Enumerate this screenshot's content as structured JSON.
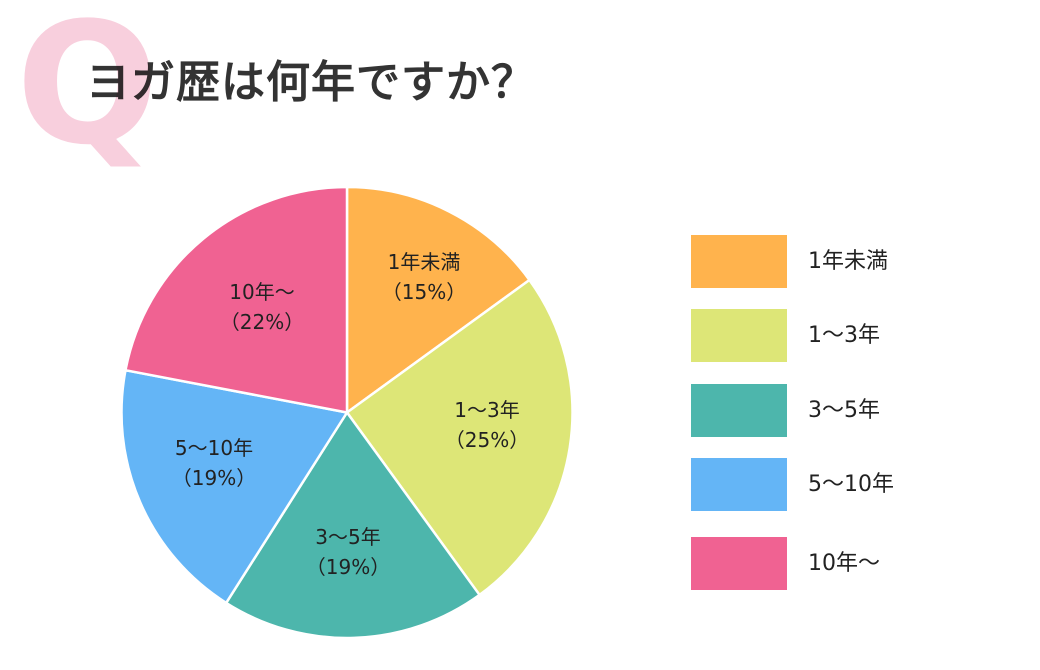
{
  "header": {
    "q_letter": "Q",
    "title": "ヨガ歴は何年ですか？"
  },
  "colors": {
    "q_letter": "#f8cfdd",
    "title": "#333333",
    "slice_border": "#ffffff"
  },
  "chart_data": {
    "type": "pie",
    "title": "ヨガ歴は何年ですか？",
    "categories": [
      "1年未満",
      "1〜3年",
      "3〜5年",
      "5〜10年",
      "10年〜"
    ],
    "values": [
      15,
      25,
      19,
      19,
      22
    ],
    "unit": "%",
    "colors": [
      "#ffb34d",
      "#dde677",
      "#4db6ac",
      "#64b5f6",
      "#f06292"
    ],
    "start_angle": "12 o'clock",
    "direction": "clockwise",
    "legend_position": "right"
  },
  "slices": [
    {
      "label": "1年未満",
      "pct_text": "（15%）"
    },
    {
      "label": "1〜3年",
      "pct_text": "（25%）"
    },
    {
      "label": "3〜5年",
      "pct_text": "（19%）"
    },
    {
      "label": "5〜10年",
      "pct_text": "（19%）"
    },
    {
      "label": "10年〜",
      "pct_text": "（22%）"
    }
  ],
  "legend": {
    "items": [
      {
        "label": "1年未満",
        "color": "#ffb34d"
      },
      {
        "label": "1〜3年",
        "color": "#dde677"
      },
      {
        "label": "3〜5年",
        "color": "#4db6ac"
      },
      {
        "label": "5〜10年",
        "color": "#64b5f6"
      },
      {
        "label": "10年〜",
        "color": "#f06292"
      }
    ]
  }
}
